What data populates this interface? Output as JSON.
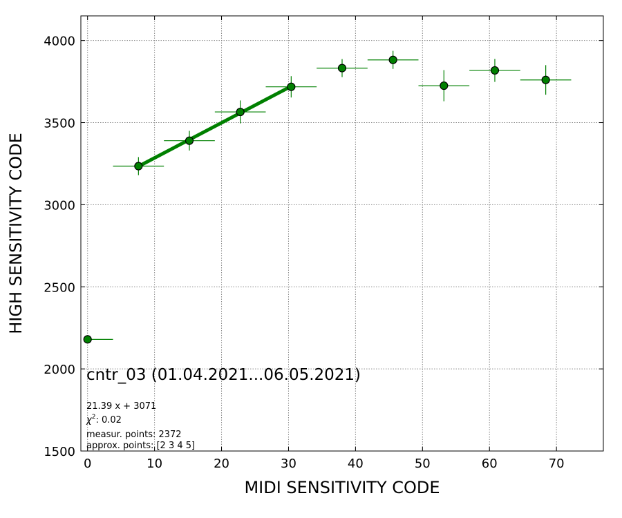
{
  "chart_data": {
    "type": "scatter",
    "xlabel": "MIDI SENSITIVITY CODE",
    "ylabel": "HIGH SENSITIVITY CODE",
    "xlim": [
      -1,
      77
    ],
    "ylim": [
      1500,
      4150
    ],
    "xticks": [
      "0",
      "10",
      "20",
      "30",
      "40",
      "50",
      "60",
      "70"
    ],
    "xtick_values": [
      0,
      10,
      20,
      30,
      40,
      50,
      60,
      70
    ],
    "yticks": [
      "1500",
      "2000",
      "2500",
      "3000",
      "3500",
      "4000"
    ],
    "ytick_values": [
      1500,
      2000,
      2500,
      3000,
      3500,
      4000
    ],
    "grid": true,
    "color": "#008000",
    "points": [
      {
        "x": 0.0,
        "y": 2180,
        "xerr": [
          0.0,
          3.8
        ],
        "yerr": 0
      },
      {
        "x": 7.6,
        "y": 3235,
        "xerr": [
          3.8,
          3.8
        ],
        "yerr": 55
      },
      {
        "x": 15.2,
        "y": 3390,
        "xerr": [
          3.8,
          3.8
        ],
        "yerr": 60
      },
      {
        "x": 22.8,
        "y": 3565,
        "xerr": [
          3.8,
          3.8
        ],
        "yerr": 70
      },
      {
        "x": 30.4,
        "y": 3718,
        "xerr": [
          3.8,
          3.8
        ],
        "yerr": 65
      },
      {
        "x": 38.0,
        "y": 3832,
        "xerr": [
          3.8,
          3.8
        ],
        "yerr": 55
      },
      {
        "x": 45.6,
        "y": 3882,
        "xerr": [
          3.8,
          3.8
        ],
        "yerr": 55
      },
      {
        "x": 53.2,
        "y": 3725,
        "xerr": [
          3.8,
          3.8
        ],
        "yerr": 95
      },
      {
        "x": 60.8,
        "y": 3818,
        "xerr": [
          3.8,
          3.8
        ],
        "yerr": 70
      },
      {
        "x": 68.4,
        "y": 3760,
        "xerr": [
          3.8,
          3.8
        ],
        "yerr": 90
      }
    ],
    "fit": {
      "slope": 21.39,
      "intercept": 3071,
      "x_range": [
        7.6,
        30.4
      ]
    },
    "annotations": {
      "title": "cntr_03 (01.04.2021...06.05.2021)",
      "equation": "21.39 x + 3071",
      "chi2_label": "χ",
      "chi2_sup": "2",
      "chi2_value": ": 0.02",
      "measur_points": "measur. points: 2372",
      "approx_points": "approx. points: [2 3 4 5]"
    }
  }
}
